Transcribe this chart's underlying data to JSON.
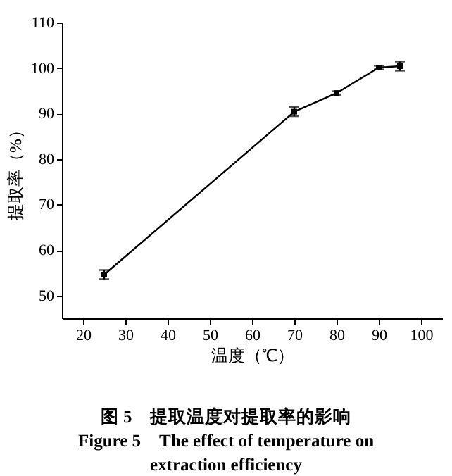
{
  "chart_data": {
    "type": "line",
    "xlabel": "温度（℃）",
    "ylabel": "提取率（%）",
    "x": [
      25,
      70,
      80,
      90,
      95
    ],
    "series": [
      {
        "color": "#000000",
        "values": [
          54.6,
          90.4,
          94.5,
          100.1,
          100.4
        ],
        "errors": [
          1,
          1,
          0.4,
          0.4,
          1
        ]
      }
    ],
    "xlim": [
      15,
      105
    ],
    "xticks": [
      20,
      30,
      40,
      50,
      60,
      70,
      80,
      90,
      100
    ],
    "ylim": [
      45,
      110
    ],
    "yticks": [
      50,
      60,
      70,
      80,
      90,
      100,
      110
    ],
    "marker": "square",
    "line_style": "solid",
    "grid": false,
    "annotations": [
      "图 5　提取温度对提取率的影响",
      "Figure 5　The effect of temperature on extraction efficiency"
    ]
  }
}
